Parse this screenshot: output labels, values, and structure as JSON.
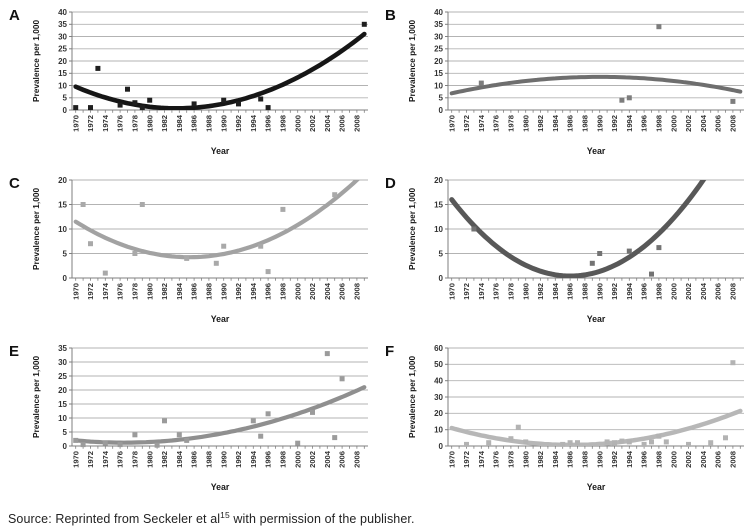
{
  "figure": {
    "source_caption": {
      "prefix": "Source: Reprinted from Seckeler et al",
      "superscript": "15",
      "suffix": " with permission of the publisher."
    }
  },
  "style": {
    "grid_color": "#b3b3b3",
    "axis_color": "#7f7f7f",
    "tick_text_color": "#333333",
    "panel_letter_color": "#111111"
  },
  "chart_data": [
    {
      "panel": "A",
      "type": "scatter",
      "xlabel": "Year",
      "ylabel": "Prevalence per 1,000",
      "xlim": [
        1969.5,
        2009.5
      ],
      "x_tick_years": {
        "min": 1970,
        "max": 2009
      },
      "x_labels": {
        "start": 1970,
        "end": 2008,
        "step": 2
      },
      "ylim": [
        0,
        40
      ],
      "y_step": 5,
      "grid": "horizontal",
      "point_color": "#1f1f1f",
      "curve_color": "#161616",
      "curve_width": 4.6,
      "points": [
        [
          1970,
          1
        ],
        [
          1972,
          1
        ],
        [
          1973,
          17
        ],
        [
          1976,
          2
        ],
        [
          1977,
          8.5
        ],
        [
          1978,
          3
        ],
        [
          1979,
          1
        ],
        [
          1980,
          4
        ],
        [
          1986,
          2.5
        ],
        [
          1990,
          4
        ],
        [
          1992,
          2.5
        ],
        [
          1995,
          4.5
        ],
        [
          1996,
          1
        ],
        [
          2009,
          35
        ]
      ],
      "trend": {
        "type": "quadratic",
        "anchors": [
          [
            1970,
            9.5
          ],
          [
            1983,
            0.7
          ],
          [
            2009,
            31
          ]
        ]
      }
    },
    {
      "panel": "B",
      "type": "scatter",
      "xlabel": "Year",
      "ylabel": "Prevalence per 1,000",
      "xlim": [
        1969.5,
        2009.5
      ],
      "x_tick_years": {
        "min": 1970,
        "max": 2009
      },
      "x_labels": {
        "start": 1970,
        "end": 2008,
        "step": 2
      },
      "ylim": [
        0,
        40
      ],
      "y_step": 5,
      "grid": "horizontal",
      "point_color": "#7d7d7d",
      "curve_color": "#6e6e6e",
      "curve_width": 4.0,
      "points": [
        [
          1974,
          11
        ],
        [
          1993,
          4
        ],
        [
          1994,
          5
        ],
        [
          1998,
          34
        ],
        [
          2008,
          3.5
        ]
      ],
      "trend": {
        "type": "quadratic",
        "anchors": [
          [
            1970,
            6.8
          ],
          [
            1989,
            13.5
          ],
          [
            2009,
            7.5
          ]
        ]
      }
    },
    {
      "panel": "C",
      "type": "scatter",
      "xlabel": "Year",
      "ylabel": "Prevalence per 1,000",
      "xlim": [
        1969.5,
        2009.5
      ],
      "x_tick_years": {
        "min": 1970,
        "max": 2009
      },
      "x_labels": {
        "start": 1970,
        "end": 2008,
        "step": 2
      },
      "ylim": [
        0,
        20
      ],
      "y_step": 5,
      "grid": "horizontal",
      "point_color": "#a9a9a9",
      "curve_color": "#a2a2a2",
      "curve_width": 4.2,
      "points": [
        [
          1971,
          15
        ],
        [
          1972,
          7
        ],
        [
          1974,
          1
        ],
        [
          1978,
          5
        ],
        [
          1979,
          15
        ],
        [
          1985,
          4
        ],
        [
          1989,
          3
        ],
        [
          1990,
          6.5
        ],
        [
          1995,
          6.5
        ],
        [
          1996,
          1.3
        ],
        [
          1998,
          14
        ],
        [
          2005,
          17
        ]
      ],
      "trend": {
        "type": "quadratic",
        "anchors": [
          [
            1970,
            11.5
          ],
          [
            1984,
            4.3
          ],
          [
            2008,
            20
          ]
        ]
      }
    },
    {
      "panel": "D",
      "type": "scatter",
      "xlabel": "Year",
      "ylabel": "Prevalence per 1,000",
      "xlim": [
        1969.5,
        2009.5
      ],
      "x_tick_years": {
        "min": 1970,
        "max": 2009
      },
      "x_labels": {
        "start": 1970,
        "end": 2008,
        "step": 2
      },
      "ylim": [
        0,
        20
      ],
      "y_step": 5,
      "grid": "horizontal",
      "point_color": "#737373",
      "curve_color": "#585858",
      "curve_width": 5.0,
      "points": [
        [
          1973,
          10
        ],
        [
          1989,
          3
        ],
        [
          1990,
          5
        ],
        [
          1994,
          5.5
        ],
        [
          1997,
          0.8
        ],
        [
          1998,
          6.2
        ]
      ],
      "trend": {
        "type": "quadratic",
        "anchors": [
          [
            1970,
            16
          ],
          [
            1986,
            0.4
          ],
          [
            2004,
            20
          ]
        ]
      }
    },
    {
      "panel": "E",
      "type": "scatter",
      "xlabel": "Year",
      "ylabel": "Prevalence per 1,000",
      "xlim": [
        1969.5,
        2009.5
      ],
      "x_tick_years": {
        "min": 1970,
        "max": 2009
      },
      "x_labels": {
        "start": 1970,
        "end": 2008,
        "step": 2
      },
      "ylim": [
        0,
        35
      ],
      "y_step": 5,
      "grid": "horizontal",
      "point_color": "#9b9b9b",
      "curve_color": "#8f8f8f",
      "curve_width": 4.2,
      "points": [
        [
          1970,
          2
        ],
        [
          1971,
          0.5
        ],
        [
          1974,
          1
        ],
        [
          1976,
          0.5
        ],
        [
          1978,
          4
        ],
        [
          1981,
          0.3
        ],
        [
          1982,
          9
        ],
        [
          1984,
          4
        ],
        [
          1985,
          2
        ],
        [
          1994,
          9
        ],
        [
          1995,
          3.5
        ],
        [
          1996,
          11.5
        ],
        [
          2000,
          1
        ],
        [
          2002,
          12
        ],
        [
          2004,
          33
        ],
        [
          2005,
          3
        ],
        [
          2006,
          24
        ]
      ],
      "trend": {
        "type": "quadratic",
        "anchors": [
          [
            1970,
            2
          ],
          [
            1977,
            1.2
          ],
          [
            2009,
            21
          ]
        ]
      }
    },
    {
      "panel": "F",
      "type": "scatter",
      "xlabel": "Year",
      "ylabel": "Prevalence per 1,000",
      "xlim": [
        1969.5,
        2009.5
      ],
      "x_tick_years": {
        "min": 1970,
        "max": 2009
      },
      "x_labels": {
        "start": 1970,
        "end": 2008,
        "step": 2
      },
      "ylim": [
        0,
        60
      ],
      "y_step": 10,
      "grid": "horizontal",
      "point_color": "#b3b3b3",
      "curve_color": "#b7b7b7",
      "curve_width": 4.5,
      "points": [
        [
          1972,
          1
        ],
        [
          1975,
          2
        ],
        [
          1978,
          4.5
        ],
        [
          1979,
          11.5
        ],
        [
          1980,
          2.5
        ],
        [
          1985,
          1
        ],
        [
          1986,
          2
        ],
        [
          1987,
          2
        ],
        [
          1991,
          2.5
        ],
        [
          1992,
          2
        ],
        [
          1993,
          3
        ],
        [
          1994,
          2.5
        ],
        [
          1996,
          1
        ],
        [
          1997,
          2.5
        ],
        [
          1998,
          6
        ],
        [
          1999,
          2.5
        ],
        [
          2002,
          1
        ],
        [
          2005,
          2
        ],
        [
          2007,
          5
        ],
        [
          2008,
          51
        ]
      ],
      "trend": {
        "type": "quadratic",
        "anchors": [
          [
            1970,
            11
          ],
          [
            1988,
            0.8
          ],
          [
            2009,
            21.5
          ]
        ]
      }
    }
  ]
}
